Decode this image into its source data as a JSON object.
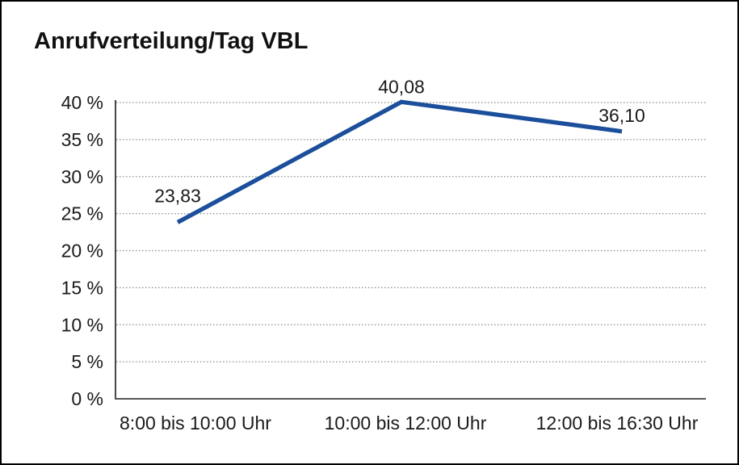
{
  "chart_data": {
    "type": "line",
    "title": "Anrufverteilung/Tag VBL",
    "categories": [
      "8:00 bis 10:00 Uhr",
      "10:00 bis 12:00 Uhr",
      "12:00 bis 16:30 Uhr"
    ],
    "values": [
      23.83,
      40.08,
      36.1
    ],
    "value_labels": [
      "23,83",
      "40,08",
      "36,10"
    ],
    "xlabel": "",
    "ylabel": "",
    "ylim": [
      0,
      40
    ],
    "ytick_step": 5,
    "ytick_labels": [
      "0 %",
      "5 %",
      "10 %",
      "15 %",
      "20 %",
      "25 %",
      "30 %",
      "35 %",
      "40 %"
    ],
    "grid": true,
    "grid_style": "dotted",
    "legend_position": "none",
    "line_color": "#1b4f9b",
    "grid_color": "#8a8a8a",
    "y_axis_color": "#1a1a1a",
    "x_axis_color": "#555555",
    "text_color": "#1a1a1a",
    "background": "#ffffff",
    "border_color": "#000000"
  }
}
